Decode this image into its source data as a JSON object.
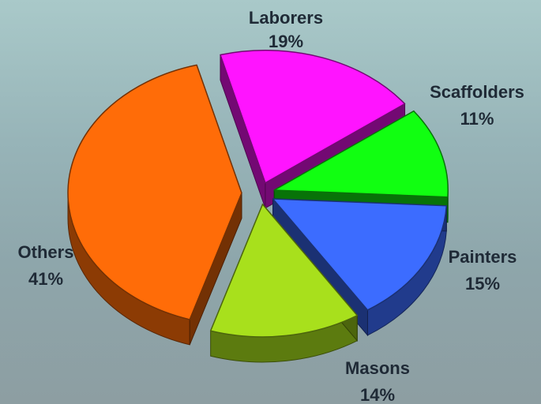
{
  "chart_data": {
    "type": "pie",
    "style": "3d-exploded",
    "title": "",
    "slices": [
      {
        "label": "Laborers",
        "value": 19,
        "display": "19%",
        "color": "#ff14ff"
      },
      {
        "label": "Scaffolders",
        "value": 11,
        "display": "11%",
        "color": "#11ff11"
      },
      {
        "label": "Painters",
        "value": 15,
        "display": "15%",
        "color": "#3c6cff"
      },
      {
        "label": "Masons",
        "value": 14,
        "display": "14%",
        "color": "#a8e01c"
      },
      {
        "label": "Others",
        "value": 41,
        "display": "41%",
        "color": "#ff6c08"
      }
    ]
  }
}
